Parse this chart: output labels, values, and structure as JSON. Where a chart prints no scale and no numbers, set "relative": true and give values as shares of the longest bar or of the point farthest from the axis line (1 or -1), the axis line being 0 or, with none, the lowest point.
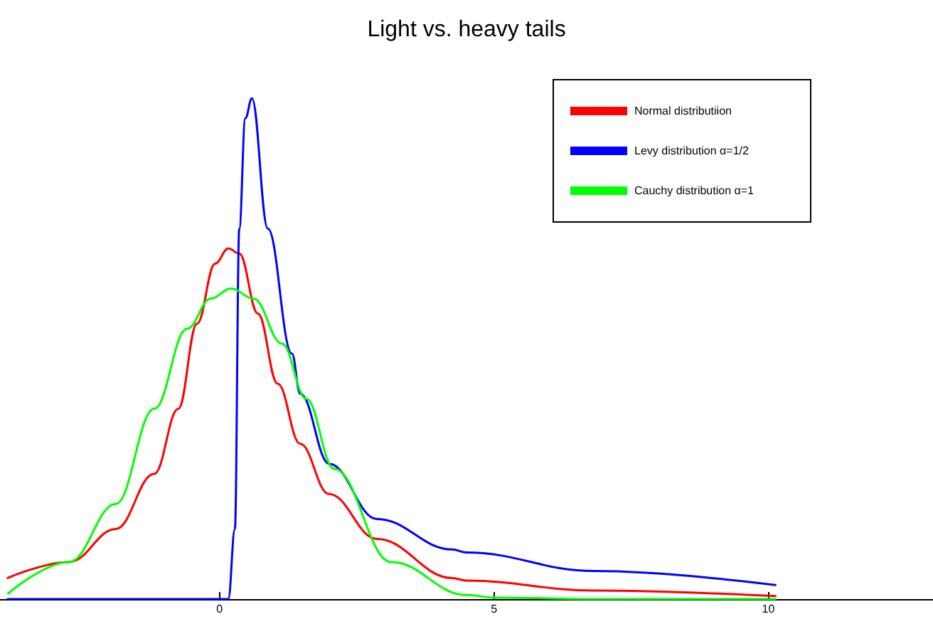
{
  "chart_data": {
    "type": "line",
    "title": "Light vs. heavy tails",
    "relative": true,
    "xlim": [
      -4,
      13
    ],
    "xticks": [
      0,
      5,
      10
    ],
    "legend": "top right",
    "grid": false,
    "marker": "none",
    "line_style": "solid",
    "series": [
      {
        "name": "Normal distributiion",
        "color": "#ff0000",
        "x": [
          -3.86,
          -2.74,
          -1.89,
          -1.19,
          -0.75,
          -0.41,
          -0.08,
          0.16,
          0.36,
          0.7,
          1.06,
          1.47,
          1.99,
          2.87,
          4.24,
          4.5,
          6.82,
          10.13
        ],
        "values": [
          0.042,
          0.074,
          0.14,
          0.25,
          0.38,
          0.55,
          0.67,
          0.7,
          0.69,
          0.57,
          0.43,
          0.31,
          0.21,
          0.12,
          0.042,
          0.037,
          0.017,
          0.006
        ]
      },
      {
        "name": "Levy distribution α=1/2",
        "color": "#0000ff",
        "x": [
          -3.86,
          0.16,
          0.28,
          0.36,
          0.47,
          0.59,
          0.88,
          1.32,
          1.47,
          2.0,
          2.87,
          4.24,
          4.5,
          6.82,
          10.13
        ],
        "values": [
          0,
          0,
          0.14,
          0.74,
          0.96,
          1.0,
          0.74,
          0.49,
          0.41,
          0.27,
          0.16,
          0.099,
          0.093,
          0.056,
          0.028
        ]
      },
      {
        "name": "Cauchy distribution α=1",
        "color": "#00ff00",
        "x": [
          -3.85,
          -2.74,
          -1.89,
          -1.19,
          -0.59,
          -0.16,
          0.21,
          0.62,
          1.14,
          1.58,
          2.09,
          3.13,
          4.5,
          5.0,
          7.0,
          10.13
        ],
        "values": [
          0.011,
          0.074,
          0.19,
          0.38,
          0.54,
          0.6,
          0.62,
          0.6,
          0.51,
          0.4,
          0.26,
          0.074,
          0.008,
          0.003,
          0,
          0
        ]
      }
    ]
  }
}
